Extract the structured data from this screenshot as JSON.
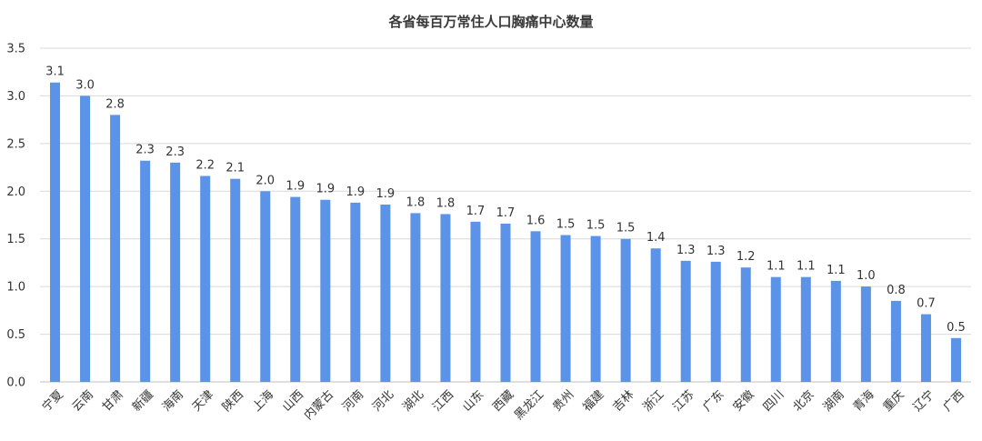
{
  "chart_data": {
    "type": "bar",
    "title": "各省每百万常住人口胸痛中心数量",
    "xlabel": "",
    "ylabel": "",
    "ylim": [
      0,
      3.5
    ],
    "yticks": [
      "0.0",
      "0.5",
      "1.0",
      "1.5",
      "2.0",
      "2.5",
      "3.0",
      "3.5"
    ],
    "grid": true,
    "legend": "none",
    "bar_color": "#5b93e8",
    "categories": [
      "宁夏",
      "云南",
      "甘肃",
      "新疆",
      "海南",
      "天津",
      "陕西",
      "上海",
      "山西",
      "内蒙古",
      "河南",
      "河北",
      "湖北",
      "江西",
      "山东",
      "西藏",
      "黑龙江",
      "贵州",
      "福建",
      "吉林",
      "浙江",
      "江苏",
      "广东",
      "安徽",
      "四川",
      "北京",
      "湖南",
      "青海",
      "重庆",
      "辽宁",
      "广西"
    ],
    "values": [
      3.14,
      3.0,
      2.8,
      2.32,
      2.3,
      2.16,
      2.13,
      2.0,
      1.94,
      1.91,
      1.88,
      1.86,
      1.77,
      1.76,
      1.68,
      1.66,
      1.58,
      1.54,
      1.53,
      1.5,
      1.4,
      1.27,
      1.26,
      1.2,
      1.1,
      1.1,
      1.06,
      1.0,
      0.85,
      0.71,
      0.46
    ],
    "data_labels": [
      "3.1",
      "3.0",
      "2.8",
      "2.3",
      "2.3",
      "2.2",
      "2.1",
      "2.0",
      "1.9",
      "1.9",
      "1.9",
      "1.9",
      "1.8",
      "1.8",
      "1.7",
      "1.7",
      "1.6",
      "1.5",
      "1.5",
      "1.5",
      "1.4",
      "1.3",
      "1.3",
      "1.2",
      "1.1",
      "1.1",
      "1.1",
      "1.0",
      "0.8",
      "0.7",
      "0.5"
    ]
  }
}
